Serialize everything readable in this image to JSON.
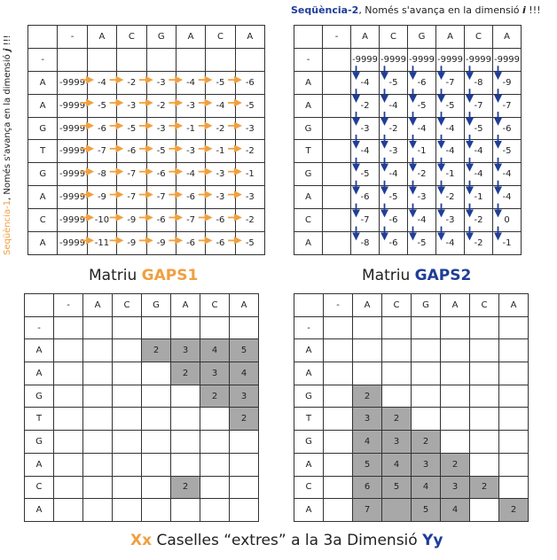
{
  "seq1_note": {
    "prefix": "Seqüència-1",
    "suffix": ",  Només s'avança en la dimensió ",
    "symbol": "j",
    "end": " !!!"
  },
  "seq2_note": {
    "prefix": "Seqüència-2",
    "suffix": ",  Només s'avança en la dimensió ",
    "symbol": "i",
    "end": " !!!"
  },
  "gaps1_title": {
    "prefix": "Matriu ",
    "name": "GAPS1"
  },
  "gaps2_title": {
    "prefix": "Matriu ",
    "name": "GAPS2"
  },
  "footer": {
    "left": "Xx",
    "middle": " Caselles “extres” a la 3a Dimensió ",
    "right": "Yy"
  },
  "col_headers": [
    "-",
    "A",
    "C",
    "G",
    "A",
    "C",
    "A"
  ],
  "row_headers": [
    "-",
    "A",
    "A",
    "G",
    "T",
    "G",
    "A",
    "C",
    "A"
  ],
  "colors": {
    "orange": "#f0a040",
    "blue": "#1f3d99",
    "shade": "#a8a8a8"
  },
  "gaps1_rows": [
    [
      "",
      "",
      "",
      "",
      "",
      "",
      ""
    ],
    [
      "-9999",
      "-4",
      "-2",
      "-3",
      "-4",
      "-5",
      "-6"
    ],
    [
      "-9999",
      "-5",
      "-3",
      "-2",
      "-3",
      "-4",
      "-5"
    ],
    [
      "-9999",
      "-6",
      "-5",
      "-3",
      "-1",
      "-2",
      "-3"
    ],
    [
      "-9999",
      "-7",
      "-6",
      "-5",
      "-3",
      "-1",
      "-2"
    ],
    [
      "-9999",
      "-8",
      "-7",
      "-6",
      "-4",
      "-3",
      "-1"
    ],
    [
      "-9999",
      "-9",
      "-7",
      "-7",
      "-6",
      "-3",
      "-3"
    ],
    [
      "-9999",
      "-10",
      "-9",
      "-6",
      "-7",
      "-6",
      "-2"
    ],
    [
      "-9999",
      "-11",
      "-9",
      "-9",
      "-6",
      "-6",
      "-5"
    ]
  ],
  "gaps2_rows": [
    [
      "",
      "-9999",
      "-9999",
      "-9999",
      "-9999",
      "-9999",
      "-9999"
    ],
    [
      "",
      "-4",
      "-5",
      "-6",
      "-7",
      "-8",
      "-9"
    ],
    [
      "",
      "-2",
      "-4",
      "-5",
      "-5",
      "-7",
      "-7"
    ],
    [
      "",
      "-3",
      "-2",
      "-4",
      "-4",
      "-5",
      "-6"
    ],
    [
      "",
      "-4",
      "-3",
      "-1",
      "-4",
      "-4",
      "-5"
    ],
    [
      "",
      "-5",
      "-4",
      "-2",
      "-1",
      "-4",
      "-4"
    ],
    [
      "",
      "-6",
      "-5",
      "-3",
      "-2",
      "-1",
      "-4"
    ],
    [
      "",
      "-7",
      "-6",
      "-4",
      "-3",
      "-2",
      "0"
    ],
    [
      "",
      "-8",
      "-6",
      "-5",
      "-4",
      "-2",
      "-1"
    ]
  ],
  "extras1_rows": [
    [
      "",
      "",
      "",
      "",
      "",
      "",
      ""
    ],
    [
      "",
      "",
      "",
      "2",
      "3",
      "4",
      "5"
    ],
    [
      "",
      "",
      "",
      "",
      "2",
      "3",
      "4"
    ],
    [
      "",
      "",
      "",
      "",
      "",
      "2",
      "3"
    ],
    [
      "",
      "",
      "",
      "",
      "",
      "",
      "2"
    ],
    [
      "",
      "",
      "",
      "",
      "",
      "",
      ""
    ],
    [
      "",
      "",
      "",
      "",
      "",
      "",
      ""
    ],
    [
      "",
      "",
      "",
      "",
      "2",
      "",
      ""
    ],
    [
      "",
      "",
      "",
      "",
      "",
      "",
      ""
    ]
  ],
  "extras2_rows": [
    [
      "",
      "",
      "",
      "",
      "",
      "",
      ""
    ],
    [
      "",
      "",
      "",
      "",
      "",
      "",
      ""
    ],
    [
      "",
      "",
      "",
      "",
      "",
      "",
      ""
    ],
    [
      "",
      "2",
      "",
      "",
      "",
      "",
      ""
    ],
    [
      "",
      "3",
      "2",
      "",
      "",
      "",
      ""
    ],
    [
      "",
      "4",
      "3",
      "2",
      "",
      "",
      ""
    ],
    [
      "",
      "5",
      "4",
      "3",
      "2",
      "",
      ""
    ],
    [
      "",
      "6",
      "5",
      "4",
      "3",
      "2",
      ""
    ],
    [
      "",
      "7",
      "",
      "5",
      "4",
      "",
      "2"
    ]
  ],
  "extras1_shaded": [
    [
      1,
      3
    ],
    [
      1,
      4
    ],
    [
      1,
      5
    ],
    [
      1,
      6
    ],
    [
      2,
      4
    ],
    [
      2,
      5
    ],
    [
      2,
      6
    ],
    [
      3,
      5
    ],
    [
      3,
      6
    ],
    [
      4,
      6
    ],
    [
      7,
      4
    ]
  ],
  "extras2_shaded": [
    [
      3,
      1
    ],
    [
      4,
      1
    ],
    [
      4,
      2
    ],
    [
      5,
      1
    ],
    [
      5,
      2
    ],
    [
      5,
      3
    ],
    [
      6,
      1
    ],
    [
      6,
      2
    ],
    [
      6,
      3
    ],
    [
      6,
      4
    ],
    [
      7,
      1
    ],
    [
      7,
      2
    ],
    [
      7,
      3
    ],
    [
      7,
      4
    ],
    [
      7,
      5
    ],
    [
      8,
      1
    ],
    [
      8,
      2
    ],
    [
      8,
      3
    ],
    [
      8,
      4
    ],
    [
      8,
      6
    ]
  ]
}
